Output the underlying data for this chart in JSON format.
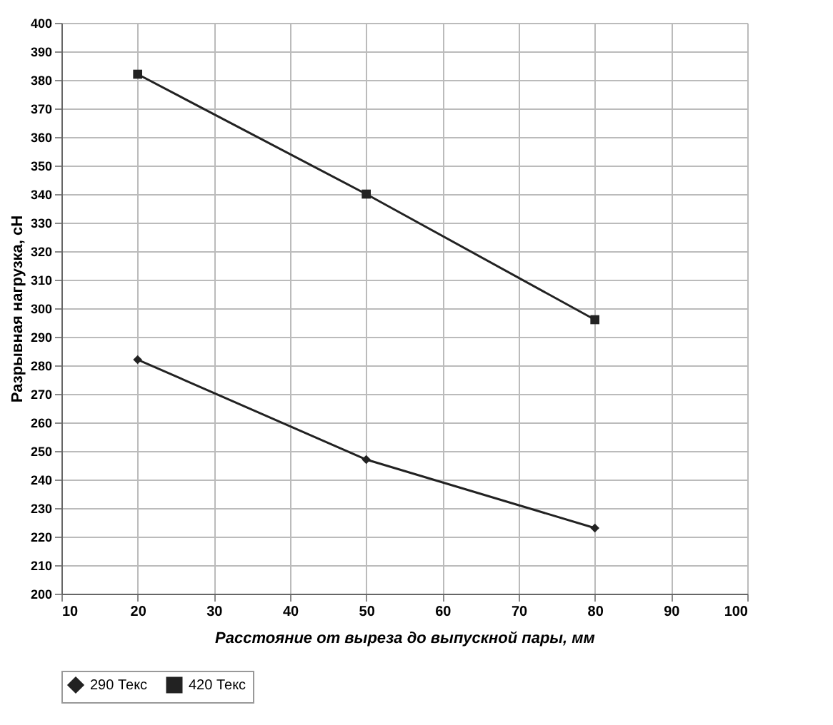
{
  "chart_data": {
    "type": "line",
    "xlabel": "Расстояние от выреза до выпускной пары, мм",
    "ylabel": "Разрывная нагрузка, сН",
    "x": [
      20,
      50,
      80
    ],
    "series": [
      {
        "name": "290 Текс",
        "color": "#222222",
        "marker": "diamond",
        "values": [
          282,
          247,
          223
        ]
      },
      {
        "name": "420 Текс",
        "color": "#222222",
        "marker": "square",
        "values": [
          382,
          340,
          296
        ]
      }
    ],
    "xlim": [
      10,
      100
    ],
    "xticks": [
      10,
      20,
      30,
      40,
      50,
      60,
      70,
      80,
      90,
      100
    ],
    "ylim": [
      200,
      400
    ],
    "yticks": [
      200,
      210,
      220,
      230,
      240,
      250,
      260,
      270,
      280,
      290,
      300,
      310,
      320,
      330,
      340,
      350,
      360,
      370,
      380,
      390,
      400
    ],
    "grid": true,
    "legend": "bottom",
    "line_style": "solid"
  }
}
